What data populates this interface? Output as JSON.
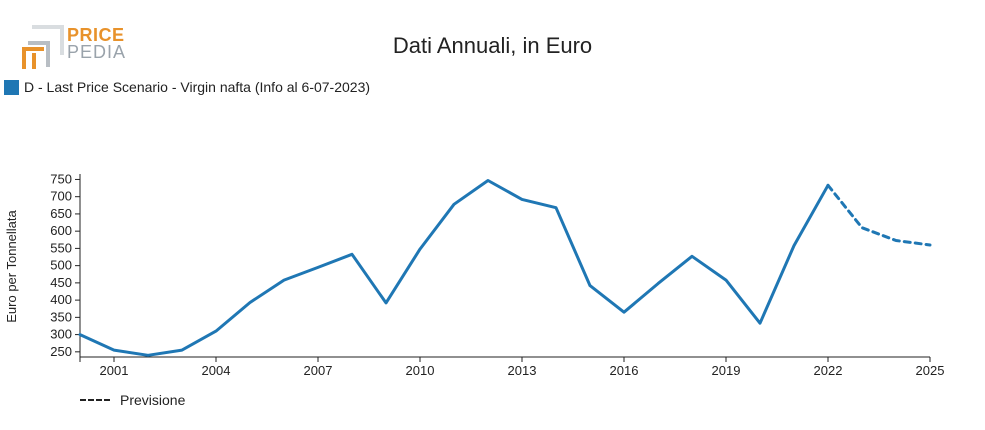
{
  "logo": {
    "line1": "PRICE",
    "line2": "PEDIA",
    "accent_color": "#e8922b",
    "gray_color": "#9aa3ab"
  },
  "chart_data": {
    "type": "line",
    "title": "Dati Annuali, in Euro",
    "ylabel": "Euro per Tonnellata",
    "xlabel": "",
    "xlim": [
      2000,
      2025
    ],
    "ylim": [
      235,
      760
    ],
    "yticks": [
      250,
      300,
      350,
      400,
      450,
      500,
      550,
      600,
      650,
      700,
      750
    ],
    "xticks": [
      2001,
      2004,
      2007,
      2010,
      2013,
      2016,
      2019,
      2022,
      2025
    ],
    "series": [
      {
        "name": "D - Last Price Scenario - Virgin nafta (Info al 6-07-2023)",
        "color": "#1f77b4",
        "x": [
          2000,
          2001,
          2002,
          2003,
          2004,
          2005,
          2006,
          2007,
          2008,
          2009,
          2010,
          2011,
          2012,
          2013,
          2014,
          2015,
          2016,
          2017,
          2018,
          2019,
          2020,
          2021,
          2022
        ],
        "y": [
          300,
          255,
          240,
          255,
          310,
          393,
          458,
          495,
          533,
          392,
          548,
          678,
          747,
          692,
          668,
          442,
          365,
          448,
          527,
          458,
          333,
          558,
          733
        ]
      },
      {
        "name": "Previsione",
        "color": "#1f77b4",
        "dashed": true,
        "x": [
          2022,
          2023,
          2024,
          2025
        ],
        "y": [
          733,
          610,
          573,
          560
        ]
      }
    ],
    "legend": {
      "forecast_label": "Previsione",
      "placement": "bottom-left"
    }
  }
}
